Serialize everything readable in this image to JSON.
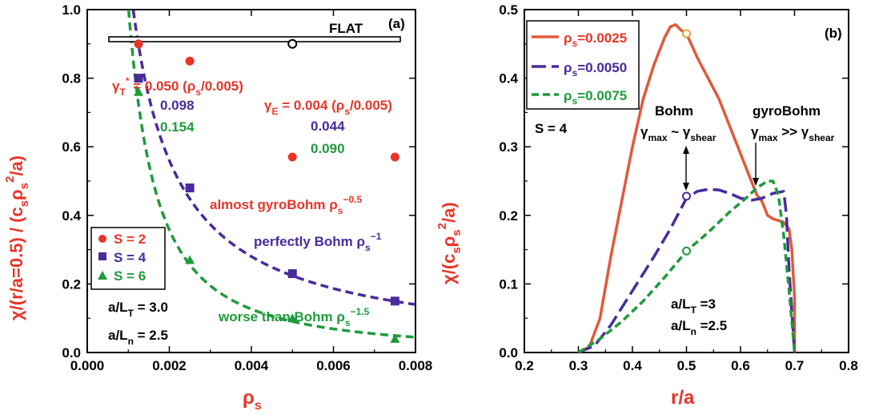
{
  "colors": {
    "red": "#e8352a",
    "purple": "#4a2b9b",
    "green": "#1f9a3c",
    "red_line": "#e05a3a",
    "black": "#000000"
  },
  "chart_data": [
    {
      "panel_tag": "(a)",
      "type": "scatter",
      "xlim": [
        0,
        0.008
      ],
      "ylim": [
        0,
        1.0
      ],
      "x_ticks": [
        "0.000",
        "0.002",
        "0.004",
        "0.006",
        "0.008"
      ],
      "y_ticks": [
        "0.0",
        "0.2",
        "0.4",
        "0.6",
        "0.8",
        "1.0"
      ],
      "ylabel_parts": [
        "χ/(r/a=0.5) / (c",
        "s",
        "ρ",
        "s",
        "2",
        "/a)"
      ],
      "xlabel_parts": [
        "ρ",
        "s"
      ],
      "flat_label": "FLAT",
      "flat_point": {
        "x": 0.005,
        "y": 0.9
      },
      "series": [
        {
          "name": "S = 2",
          "marker": "circle",
          "color": "#e8352a",
          "x": [
            0.00125,
            0.0025,
            0.005,
            0.0075
          ],
          "y": [
            0.9,
            0.85,
            0.57,
            0.57
          ],
          "fit": {
            "a": 0.405,
            "p": -0.5
          }
        },
        {
          "name": "S = 4",
          "marker": "square",
          "color": "#4a2b9b",
          "x": [
            0.00125,
            0.0025,
            0.005,
            0.0075
          ],
          "y": [
            0.8,
            0.48,
            0.23,
            0.15
          ],
          "fit": {
            "a": 0.00112,
            "p": -1.0
          }
        },
        {
          "name": "S = 6",
          "marker": "triangle",
          "color": "#1f9a3c",
          "x": [
            0.00125,
            0.0025,
            0.005,
            0.0075
          ],
          "y": [
            0.76,
            0.27,
            0.1,
            0.04
          ],
          "fit": {
            "a": 3.2e-05,
            "p": -1.5
          }
        }
      ],
      "annotations": {
        "gamma_t": [
          "γ",
          "T",
          "*",
          " = 0.050 (ρ",
          "s",
          "/0.005)"
        ],
        "gamma_e": [
          "γ",
          "E",
          " = 0.004 (ρ",
          "s",
          "/0.005)"
        ],
        "gt_purple": "0.098",
        "gt_green": "0.154",
        "ge_purple": "0.044",
        "ge_green": "0.090",
        "almost": [
          "almost gyroBohm ρ",
          "s",
          "−0.5"
        ],
        "perfectly": [
          "perfectly Bohm ρ",
          "s",
          "−1"
        ],
        "worse": [
          "worse than Bohm ρ",
          "s",
          "−1.5"
        ],
        "alt": [
          "a/L",
          "T",
          " = 3.0"
        ],
        "aln": [
          "a/L",
          "n",
          " = 2.5"
        ]
      }
    },
    {
      "panel_tag": "(b)",
      "type": "line",
      "xlim": [
        0.2,
        0.8
      ],
      "ylim": [
        0,
        0.5
      ],
      "x_ticks": [
        "0.2",
        "0.3",
        "0.4",
        "0.5",
        "0.6",
        "0.7",
        "0.8"
      ],
      "y_ticks": [
        "0.0",
        "0.1",
        "0.2",
        "0.3",
        "0.4",
        "0.5"
      ],
      "xlabel": "r/a",
      "ylabel_parts": [
        "χ/(c",
        "s",
        "ρ",
        "s",
        "2",
        "/a)"
      ],
      "series": [
        {
          "name": "ρs=0.0025",
          "legend_parts": [
            "ρ",
            "s",
            "=0.0025"
          ],
          "color": "#e05a3a",
          "dash": "",
          "x": [
            0.3,
            0.32,
            0.34,
            0.36,
            0.38,
            0.4,
            0.42,
            0.44,
            0.46,
            0.47,
            0.48,
            0.49,
            0.5,
            0.52,
            0.54,
            0.56,
            0.58,
            0.6,
            0.62,
            0.63,
            0.64,
            0.65,
            0.66,
            0.68,
            0.69,
            0.695,
            0.7,
            0.7
          ],
          "y": [
            0.0,
            0.008,
            0.05,
            0.14,
            0.22,
            0.3,
            0.37,
            0.42,
            0.46,
            0.475,
            0.478,
            0.47,
            0.465,
            0.43,
            0.4,
            0.37,
            0.33,
            0.29,
            0.25,
            0.23,
            0.22,
            0.2,
            0.195,
            0.19,
            0.18,
            0.15,
            0.08,
            0.0
          ]
        },
        {
          "name": "ρs=0.0050",
          "legend_parts": [
            "ρ",
            "s",
            "=0.0050"
          ],
          "color": "#4a2b9b",
          "dash": "18,7",
          "x": [
            0.3,
            0.33,
            0.36,
            0.4,
            0.44,
            0.47,
            0.5,
            0.52,
            0.54,
            0.56,
            0.58,
            0.6,
            0.62,
            0.64,
            0.66,
            0.68,
            0.685,
            0.69,
            0.7
          ],
          "y": [
            0.0,
            0.01,
            0.04,
            0.09,
            0.14,
            0.18,
            0.225,
            0.235,
            0.238,
            0.237,
            0.232,
            0.225,
            0.222,
            0.225,
            0.232,
            0.235,
            0.2,
            0.12,
            0.0
          ]
        },
        {
          "name": "ρs=0.0075",
          "legend_parts": [
            "ρ",
            "s",
            "=0.0075"
          ],
          "color": "#1f9a3c",
          "dash": "9,5",
          "x": [
            0.3,
            0.34,
            0.38,
            0.42,
            0.46,
            0.5,
            0.54,
            0.58,
            0.61,
            0.63,
            0.65,
            0.66,
            0.67,
            0.68,
            0.69,
            0.7
          ],
          "y": [
            0.0,
            0.02,
            0.045,
            0.075,
            0.11,
            0.148,
            0.175,
            0.205,
            0.225,
            0.24,
            0.25,
            0.25,
            0.23,
            0.17,
            0.09,
            0.0
          ]
        }
      ],
      "markers": [
        {
          "x": 0.5,
          "y": 0.465,
          "color": "#e8a040"
        },
        {
          "x": 0.5,
          "y": 0.228,
          "color": "#4a2b9b"
        },
        {
          "x": 0.5,
          "y": 0.148,
          "color": "#1f9a3c"
        }
      ],
      "annotations": {
        "s4": "S = 4",
        "bohm": "Bohm",
        "bohm_rel": [
          "γ",
          "max",
          " ~ γ",
          "shear"
        ],
        "gyro": "gyroBohm",
        "gyro_rel": [
          "γ",
          "max",
          " >> γ",
          "shear"
        ],
        "alt": [
          "a/L",
          "T",
          " =3"
        ],
        "aln": [
          "a/L",
          "n",
          " =2.5"
        ]
      }
    }
  ]
}
